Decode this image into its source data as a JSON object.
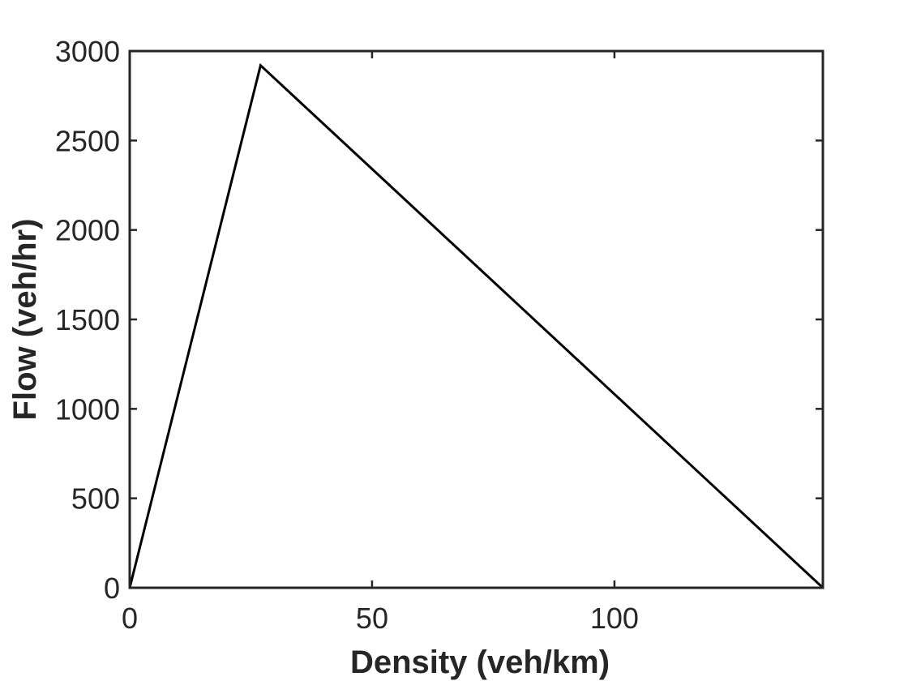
{
  "chart_data": {
    "type": "line",
    "title": "",
    "xlabel": "Density (veh/km)",
    "ylabel": "Flow (veh/hr)",
    "xlim": [
      0,
      143
    ],
    "ylim": [
      0,
      3000
    ],
    "x_ticks": [
      0,
      50,
      100
    ],
    "y_ticks": [
      0,
      500,
      1000,
      1500,
      2000,
      2500,
      3000
    ],
    "grid": false,
    "box": true,
    "series": [
      {
        "color": "#000000",
        "x": [
          0,
          27,
          143
        ],
        "y": [
          0,
          2920,
          0
        ]
      }
    ]
  }
}
